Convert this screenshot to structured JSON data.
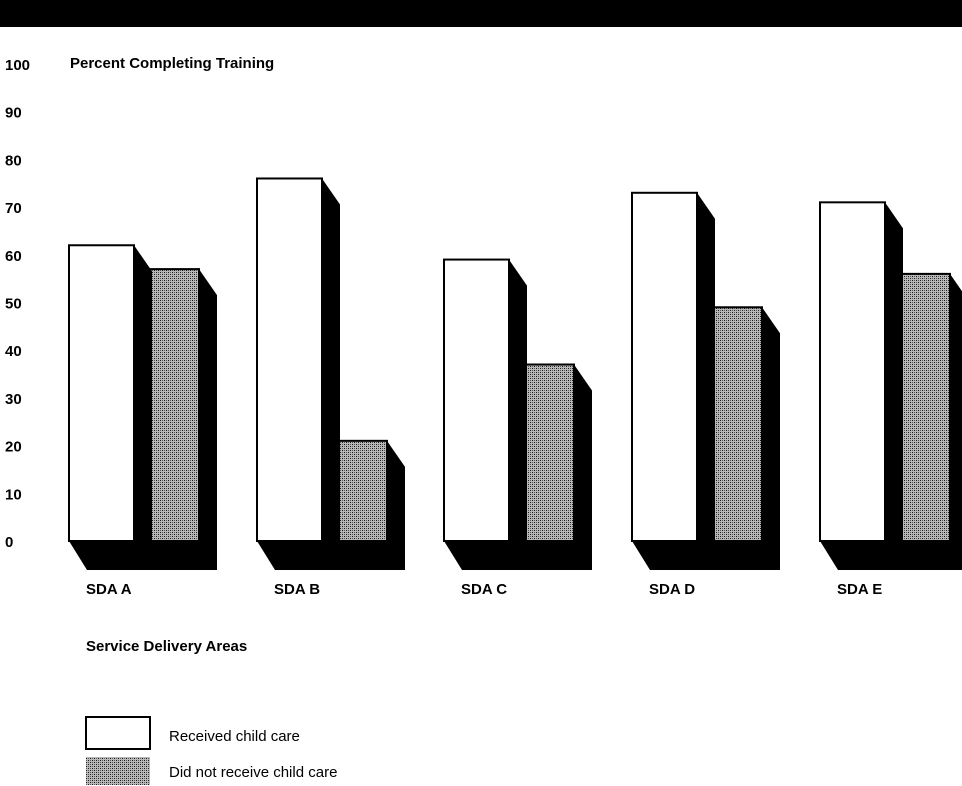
{
  "chart_data": {
    "type": "bar",
    "title": "Percent Completing Training",
    "xlabel": "Service Delivery Areas",
    "ylabel": "",
    "ylim": [
      0,
      100
    ],
    "yticks": [
      "0",
      "10",
      "20",
      "30",
      "40",
      "50",
      "60",
      "70",
      "80",
      "90",
      "100"
    ],
    "categories": [
      "SDA A",
      "SDA B",
      "SDA C",
      "SDA D",
      "SDA E"
    ],
    "series": [
      {
        "name": "Received child care",
        "values": [
          62,
          76,
          59,
          73,
          71
        ],
        "color": "#ffffff",
        "pattern": "none"
      },
      {
        "name": "Did not receive child care",
        "values": [
          57,
          21,
          37,
          49,
          56
        ],
        "color": "#888888",
        "pattern": "stipple"
      }
    ],
    "style": "3d",
    "grid": false,
    "legend": "bottom-left"
  }
}
